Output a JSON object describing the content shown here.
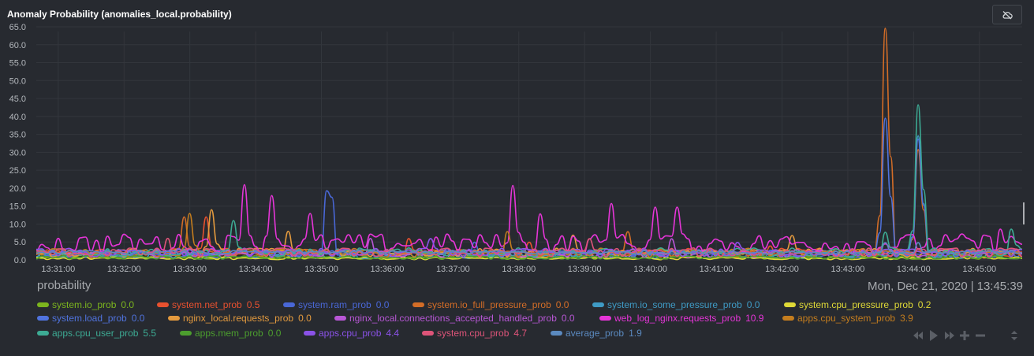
{
  "header": {
    "title": "Anomaly Probability (anomalies_local.probability)",
    "toggle_icon": "cloud-off-icon"
  },
  "units": "probability",
  "footer": {
    "date": "Mon, Dec 21, 2020",
    "separator": "|",
    "time": "13:45:39"
  },
  "controls": [
    "rewind-icon",
    "play-icon",
    "fast-forward-icon",
    "zoom-in-icon",
    "zoom-out-icon",
    "resize-icon"
  ],
  "chart_data": {
    "type": "line",
    "title": "Anomaly Probability (anomalies_local.probability)",
    "ylabel": "probability",
    "ylim": [
      0,
      65
    ],
    "yticks": [
      "0.0",
      "5.0",
      "10.0",
      "15.0",
      "20.0",
      "25.0",
      "30.0",
      "35.0",
      "40.0",
      "45.0",
      "50.0",
      "55.0",
      "60.0",
      "65.0"
    ],
    "x_ticks": [
      "13:31:00",
      "13:32:00",
      "13:33:00",
      "13:34:00",
      "13:35:00",
      "13:36:00",
      "13:37:00",
      "13:38:00",
      "13:39:00",
      "13:40:00",
      "13:41:00",
      "13:42:00",
      "13:43:00",
      "13:44:00",
      "13:45:00"
    ],
    "x_range": [
      "13:30:40",
      "13:45:39"
    ],
    "grid": true,
    "legend_position": "bottom",
    "series": [
      {
        "name": "system.io_prob",
        "value": "0.0",
        "color": "#7cb51e",
        "base": 0.4,
        "noise": 0.8,
        "spikes": []
      },
      {
        "name": "system.net_prob",
        "value": "0.5",
        "color": "#e8512f",
        "base": 1.5,
        "noise": 2.5,
        "spikes": [
          [
            "13:33:15",
            12
          ],
          [
            "13:36:20",
            6
          ],
          [
            "13:38:10",
            5
          ],
          [
            "13:41:50",
            4
          ]
        ]
      },
      {
        "name": "system.ram_prob",
        "value": "0.0",
        "color": "#4967d6",
        "base": 1.2,
        "noise": 2.0,
        "spikes": [
          [
            "13:35:07",
            25
          ],
          [
            "13:37:20",
            5
          ]
        ]
      },
      {
        "name": "system.io_full_pressure_prob",
        "value": "0.0",
        "color": "#d36d27",
        "base": 1.2,
        "noise": 2.5,
        "spikes": [
          [
            "13:32:55",
            12
          ],
          [
            "13:43:35",
            67
          ],
          [
            "13:44:05",
            32
          ],
          [
            "13:39:40",
            8
          ]
        ]
      },
      {
        "name": "system.io_some_pressure_prob",
        "value": "0.0",
        "color": "#3f9bc5",
        "base": 1.0,
        "noise": 2.0,
        "spikes": [
          [
            "13:44:05",
            36
          ]
        ]
      },
      {
        "name": "system.cpu_pressure_prob",
        "value": "0.2",
        "color": "#dfd937",
        "base": 0.3,
        "noise": 0.8,
        "spikes": []
      },
      {
        "name": "system.load_prob",
        "value": "0.0",
        "color": "#5073de",
        "base": 1.4,
        "noise": 2.2,
        "spikes": [
          [
            "13:43:35",
            41
          ],
          [
            "13:44:05",
            35
          ]
        ]
      },
      {
        "name": "nginx_local.requests_prob",
        "value": "0.0",
        "color": "#e39a3e",
        "base": 1.5,
        "noise": 2.5,
        "spikes": [
          [
            "13:33:20",
            14
          ],
          [
            "13:34:30",
            8
          ],
          [
            "13:38:50",
            7
          ],
          [
            "13:42:10",
            7
          ]
        ]
      },
      {
        "name": "nginx_local.connections_accepted_handled_prob",
        "value": "0.0",
        "color": "#b857d6",
        "base": 1.3,
        "noise": 2.2,
        "spikes": [
          [
            "13:35:45",
            6
          ],
          [
            "13:40:20",
            6
          ]
        ]
      },
      {
        "name": "web_log_nginx.requests_prob",
        "value": "10.9",
        "color": "#e635d8",
        "base": 3.5,
        "noise": 5.5,
        "spikes": [
          [
            "13:33:50",
            21
          ],
          [
            "13:34:15",
            18
          ],
          [
            "13:34:50",
            13
          ],
          [
            "13:37:55",
            21
          ],
          [
            "13:38:20",
            13
          ],
          [
            "13:39:25",
            16
          ],
          [
            "13:40:05",
            15
          ],
          [
            "13:40:25",
            15
          ],
          [
            "13:45:20",
            9
          ]
        ]
      },
      {
        "name": "apps.cpu_system_prob",
        "value": "3.9",
        "color": "#c47d1e",
        "base": 1.5,
        "noise": 2.5,
        "spikes": [
          [
            "13:33:00",
            13
          ],
          [
            "13:37:50",
            8
          ]
        ]
      },
      {
        "name": "apps.cpu_user_prob",
        "value": "5.5",
        "color": "#3dab94",
        "base": 1.6,
        "noise": 2.5,
        "spikes": [
          [
            "13:33:40",
            11
          ],
          [
            "13:44:05",
            45
          ],
          [
            "13:43:35",
            8
          ],
          [
            "13:45:30",
            9
          ]
        ]
      },
      {
        "name": "apps.mem_prob",
        "value": "0.0",
        "color": "#4c9e2e",
        "base": 0.5,
        "noise": 1.0,
        "spikes": []
      },
      {
        "name": "apps.cpu_prob",
        "value": "4.4",
        "color": "#8b52e8",
        "base": 1.5,
        "noise": 2.5,
        "spikes": [
          [
            "13:36:40",
            6
          ],
          [
            "13:41:20",
            5
          ]
        ]
      },
      {
        "name": "system.cpu_prob",
        "value": "4.7",
        "color": "#de5479",
        "base": 1.6,
        "noise": 2.5,
        "spikes": [
          [
            "13:32:40",
            6
          ],
          [
            "13:39:05",
            6
          ]
        ]
      },
      {
        "name": "average_prob",
        "value": "1.9",
        "color": "#5b8ac0",
        "base": 1.9,
        "noise": 1.0,
        "spikes": [
          [
            "13:43:35",
            5
          ],
          [
            "13:44:05",
            5
          ]
        ]
      }
    ]
  }
}
